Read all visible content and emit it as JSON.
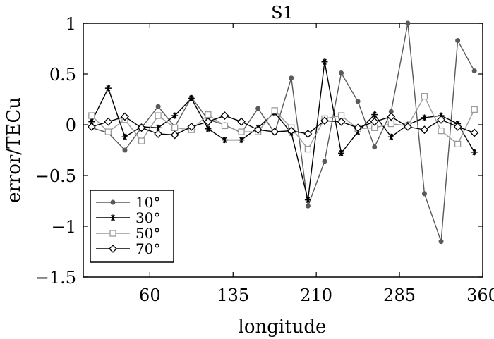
{
  "chart_data": {
    "type": "line",
    "title": "S1",
    "xlabel": "longitude",
    "ylabel": "error/TECu",
    "xlim": [
      0,
      360
    ],
    "ylim": [
      -1.5,
      1
    ],
    "xticks": [
      "60",
      "135",
      "210",
      "285",
      "360"
    ],
    "xtick_values": [
      60,
      135,
      210,
      285,
      360
    ],
    "yticks": [
      "1",
      "0.5",
      "0",
      "−0.5",
      "−1",
      "−1.5"
    ],
    "ytick_values": [
      1,
      0.5,
      0,
      -0.5,
      -1,
      -1.5
    ],
    "grid": false,
    "legend_position": "bottom-left",
    "x": [
      7.5,
      22.5,
      37.5,
      52.5,
      67.5,
      82.5,
      97.5,
      112.5,
      127.5,
      142.5,
      157.5,
      172.5,
      187.5,
      202.5,
      217.5,
      232.5,
      247.5,
      262.5,
      277.5,
      292.5,
      307.5,
      322.5,
      337.5,
      352.5
    ],
    "series": [
      {
        "name": "10°",
        "color": "#5a5a5a",
        "marker": "dot",
        "values": [
          -0.03,
          -0.08,
          -0.25,
          -0.03,
          0.18,
          -0.02,
          0.27,
          0.05,
          0.0,
          -0.08,
          0.16,
          -0.08,
          0.46,
          -0.8,
          -0.36,
          0.51,
          0.23,
          -0.22,
          0.13,
          1.0,
          -0.68,
          -1.15,
          0.83,
          0.53
        ]
      },
      {
        "name": "30°",
        "color": "#000000",
        "marker": "star",
        "values": [
          0.03,
          0.36,
          -0.12,
          -0.02,
          -0.03,
          0.09,
          0.26,
          -0.04,
          -0.15,
          -0.15,
          -0.03,
          0.12,
          -0.08,
          -0.74,
          0.62,
          -0.28,
          -0.07,
          0.1,
          -0.12,
          0.0,
          0.07,
          0.09,
          0.01,
          -0.27
        ]
      },
      {
        "name": "50°",
        "color": "#9a9a9a",
        "marker": "square",
        "values": [
          0.09,
          -0.07,
          0.05,
          -0.16,
          0.09,
          -0.03,
          -0.05,
          0.1,
          -0.01,
          -0.07,
          -0.07,
          0.14,
          -0.03,
          -0.24,
          0.06,
          0.09,
          -0.04,
          -0.03,
          0.01,
          -0.01,
          0.28,
          -0.06,
          -0.19,
          0.15
        ]
      },
      {
        "name": "70°",
        "color": "#000000",
        "marker": "diamond",
        "values": [
          -0.02,
          0.03,
          0.08,
          -0.03,
          -0.09,
          -0.1,
          -0.02,
          0.03,
          0.09,
          0.03,
          -0.05,
          -0.07,
          -0.06,
          -0.09,
          0.04,
          0.03,
          -0.03,
          0.03,
          0.08,
          -0.02,
          -0.05,
          0.05,
          -0.02,
          -0.08
        ]
      }
    ]
  }
}
